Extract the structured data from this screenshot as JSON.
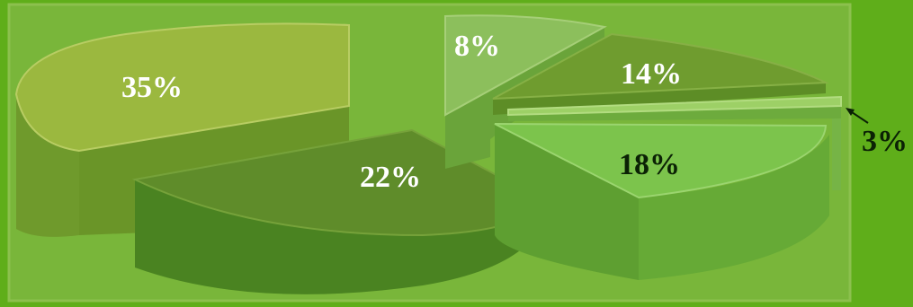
{
  "chart_data": {
    "type": "pie",
    "title": "",
    "slices": [
      {
        "label": "35%",
        "value": 35,
        "color": "#8fb23a"
      },
      {
        "label": "22%",
        "value": 22,
        "color": "#57932a"
      },
      {
        "label": "18%",
        "value": 18,
        "color": "#74bf45"
      },
      {
        "label": "3%",
        "value": 3,
        "color": "#92cc5a"
      },
      {
        "label": "14%",
        "value": 14,
        "color": "#6d9a2e"
      },
      {
        "label": "8%",
        "value": 8,
        "color": "#84ba55"
      }
    ],
    "exploded": true,
    "three_d": true,
    "legend": "none"
  },
  "colors": {
    "page_background": "#5fae1a",
    "plot_background": "#79b63a"
  }
}
